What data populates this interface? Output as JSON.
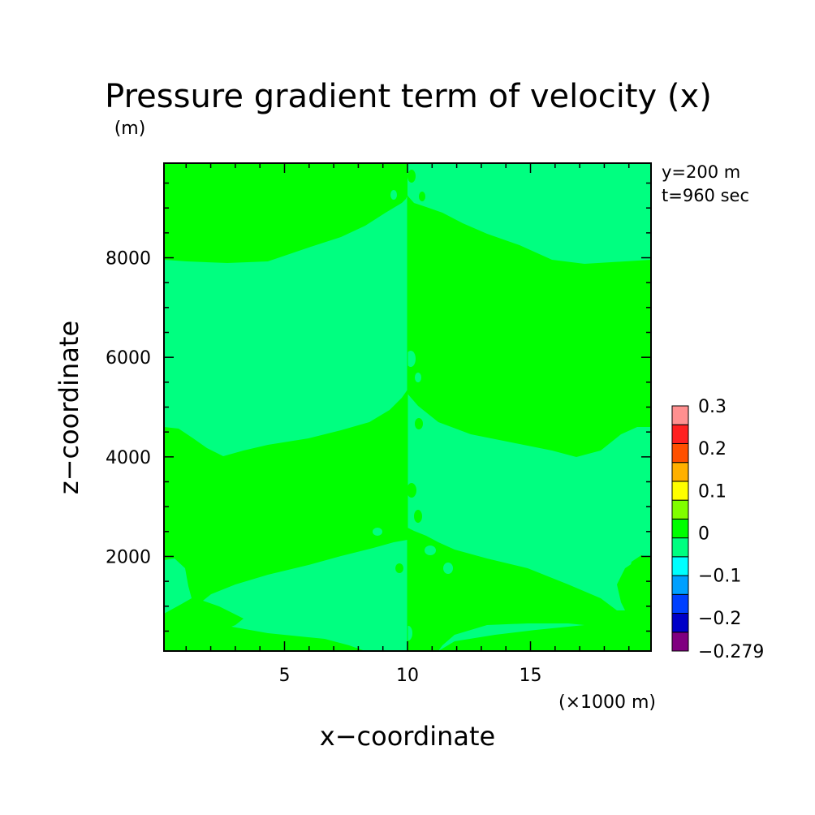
{
  "chart_data": {
    "type": "heatmap",
    "title": "Pressure gradient term of velocity (x)",
    "y_unit": "(m)",
    "xlabel": "x−coordinate",
    "ylabel": "z−coordinate",
    "x_unit": "(×1000 m)",
    "annotations": [
      "y=200 m",
      "t=960 sec"
    ],
    "xlim": [
      0.1,
      19.9
    ],
    "ylim": [
      100,
      9900
    ],
    "x_ticks": [
      5,
      10,
      15
    ],
    "y_ticks": [
      2000,
      4000,
      6000,
      8000
    ],
    "colorbar": {
      "levels": [
        -0.279,
        -0.25,
        -0.2,
        -0.15,
        -0.1,
        -0.05,
        0,
        0.05,
        0.1,
        0.15,
        0.2,
        0.25,
        0.3
      ],
      "tick_labels": [
        "0.3",
        "0.2",
        "0.1",
        "0",
        "−0.1",
        "−0.2",
        "−0.279"
      ],
      "tick_values": [
        0.3,
        0.2,
        0.1,
        0,
        -0.1,
        -0.2,
        -0.279
      ],
      "colors": [
        "#800080",
        "#0000c8",
        "#0040ff",
        "#00a0ff",
        "#00ffff",
        "#00ff80",
        "#00ff00",
        "#80ff00",
        "#ffff00",
        "#ffb000",
        "#ff5000",
        "#ff2020",
        "#ff9090"
      ]
    },
    "regions": [
      {
        "name": "positive (0 to 0.05)",
        "color": "#00ff00",
        "approx_value": 0.02
      },
      {
        "name": "negative (-0.05 to 0)",
        "color": "#00ff80",
        "approx_value": -0.02
      }
    ]
  }
}
